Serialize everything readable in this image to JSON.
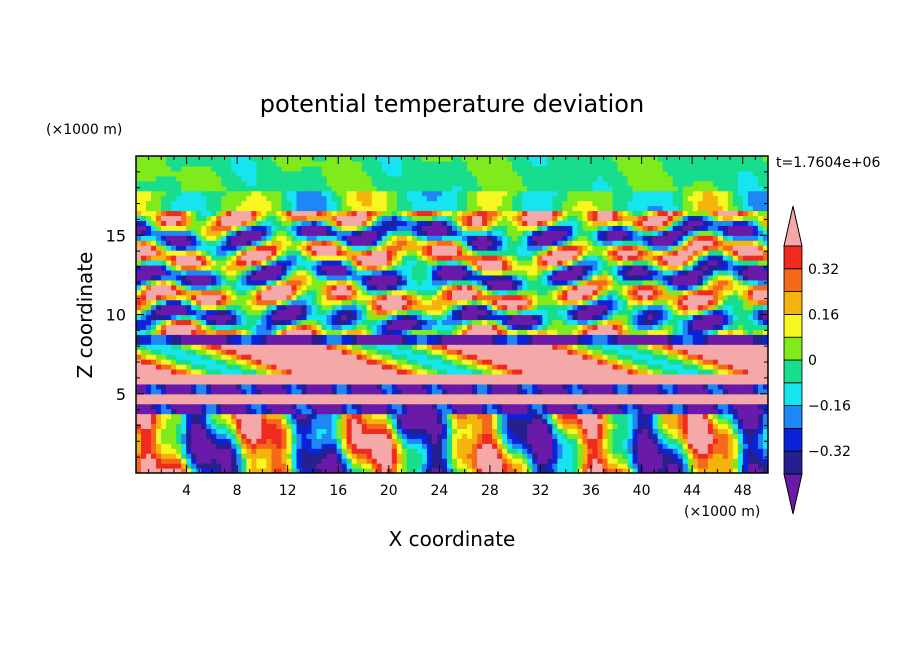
{
  "chart_data": {
    "type": "heatmap",
    "title": "potential temperature deviation",
    "xlabel": "X coordinate",
    "ylabel": "Z coordinate",
    "x_unit": "(×1000 m)",
    "y_unit": "(×1000 m)",
    "time_label": "t=1.7604e+06",
    "xlim": [
      0,
      50
    ],
    "ylim": [
      0,
      20
    ],
    "x_ticks": [
      4,
      8,
      12,
      16,
      20,
      24,
      28,
      32,
      36,
      40,
      44,
      48
    ],
    "y_ticks": [
      5,
      10,
      15
    ],
    "colorbar": {
      "levels": [
        -0.4,
        -0.32,
        -0.24,
        -0.16,
        -0.08,
        0,
        0.08,
        0.16,
        0.24,
        0.32,
        0.4
      ],
      "tick_values": [
        0.32,
        0.16,
        0,
        -0.16,
        -0.32
      ],
      "tick_labels": [
        "0.32",
        "0.16",
        "0",
        "−0.16",
        "−0.32"
      ],
      "colors": [
        "#6a1aa8",
        "#26208f",
        "#0a22d9",
        "#1f86f7",
        "#16e5f0",
        "#17dd8c",
        "#7fea1c",
        "#f7f71f",
        "#f5b40d",
        "#f56a1a",
        "#f02a1f",
        "#f5a8a8"
      ],
      "extend": "both"
    },
    "grid": false
  }
}
